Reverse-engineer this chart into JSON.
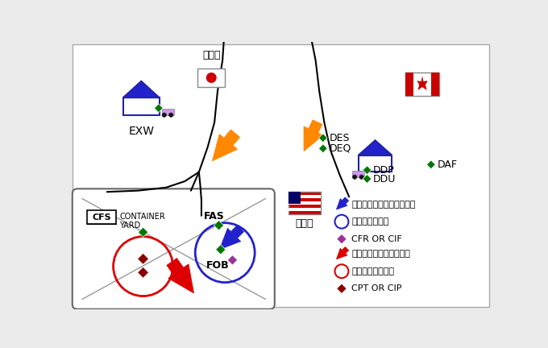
{
  "bg_color": "#ebebeb",
  "legend": {
    "blue_arrow_text": "傭船契約によるバラ積み船",
    "blue_circle_text": "伝統的取引条件",
    "purple_diamond_text": "CFR OR CIF",
    "red_arrow_text": "定期船（コンテナ船）他",
    "red_circle_text": "コンテナ取引条件",
    "dark_red_diamond_text": "CPT OR CIP"
  },
  "colors": {
    "blue": "#2222cc",
    "orange": "#ff8800",
    "green": "#007700",
    "red": "#dd0000",
    "purple": "#993399",
    "dark_red": "#880000",
    "truck": "#cc99ee",
    "house_border": "#2222aa"
  }
}
